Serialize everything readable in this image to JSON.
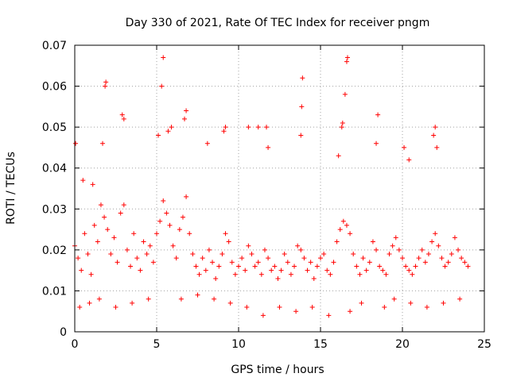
{
  "chart_data": {
    "type": "scatter",
    "title": "Day 330 of 2021, Rate Of TEC Index for receiver pngm",
    "xlabel": "GPS time / hours",
    "ylabel": "ROTI / TECUs",
    "xlim": [
      0,
      25
    ],
    "ylim": [
      0,
      0.07
    ],
    "x_ticks": [
      0,
      5,
      10,
      15,
      20,
      25
    ],
    "x_tick_labels": [
      "0",
      "5",
      "10",
      "15",
      "20",
      "25"
    ],
    "y_ticks": [
      0,
      0.01,
      0.02,
      0.03,
      0.04,
      0.05,
      0.06,
      0.07
    ],
    "y_tick_labels": [
      "0",
      "0.01",
      "0.02",
      "0.03",
      "0.04",
      "0.05",
      "0.06",
      "0.07"
    ],
    "grid": true,
    "marker": "plus",
    "color": "#ff0000",
    "series": [
      {
        "name": "ROTI",
        "x": [
          0.0,
          0.2,
          0.4,
          0.6,
          0.8,
          1.0,
          1.2,
          1.4,
          1.6,
          1.8,
          2.0,
          2.2,
          2.4,
          2.6,
          2.8,
          3.0,
          3.2,
          3.4,
          3.6,
          3.8,
          4.0,
          4.2,
          4.4,
          4.6,
          4.8,
          5.0,
          5.2,
          5.4,
          5.6,
          5.8,
          6.0,
          6.2,
          6.4,
          6.6,
          6.8,
          7.0,
          7.2,
          7.4,
          7.6,
          7.8,
          8.0,
          8.2,
          8.4,
          8.6,
          8.8,
          9.0,
          9.2,
          9.4,
          9.6,
          9.8,
          10.0,
          10.2,
          10.4,
          10.6,
          10.8,
          11.0,
          11.2,
          11.4,
          11.6,
          11.8,
          12.0,
          12.2,
          12.4,
          12.6,
          12.8,
          13.0,
          13.2,
          13.4,
          13.6,
          13.8,
          14.0,
          14.2,
          14.4,
          14.6,
          14.8,
          15.0,
          15.2,
          15.4,
          15.6,
          15.8,
          16.0,
          16.2,
          16.4,
          16.6,
          16.8,
          17.0,
          17.2,
          17.4,
          17.6,
          17.8,
          18.0,
          18.2,
          18.4,
          18.6,
          18.8,
          19.0,
          19.2,
          19.4,
          19.6,
          19.8,
          20.0,
          20.2,
          20.4,
          20.6,
          20.8,
          21.0,
          21.2,
          21.4,
          21.6,
          21.8,
          22.0,
          22.2,
          22.4,
          22.6,
          22.8,
          23.0,
          23.2,
          23.4,
          23.6,
          23.8,
          24.0,
          0.05,
          0.5,
          1.1,
          1.7,
          1.85,
          1.9,
          2.9,
          3.0,
          5.1,
          5.3,
          5.4,
          5.7,
          5.9,
          6.7,
          6.8,
          8.1,
          9.1,
          9.2,
          10.6,
          11.2,
          11.7,
          11.8,
          13.8,
          13.85,
          13.9,
          16.1,
          16.3,
          16.35,
          16.5,
          16.6,
          16.65,
          18.4,
          18.5,
          20.1,
          20.4,
          21.9,
          22.0,
          22.1,
          0.3,
          0.9,
          1.5,
          2.5,
          3.5,
          4.5,
          6.5,
          7.5,
          8.5,
          9.5,
          10.5,
          11.5,
          12.5,
          13.5,
          14.5,
          15.5,
          16.8,
          17.5,
          18.9,
          19.5,
          20.5,
          21.5,
          22.5,
          23.5
        ],
        "y": [
          0.021,
          0.018,
          0.015,
          0.024,
          0.019,
          0.014,
          0.026,
          0.022,
          0.031,
          0.028,
          0.025,
          0.019,
          0.023,
          0.017,
          0.029,
          0.031,
          0.02,
          0.016,
          0.024,
          0.018,
          0.015,
          0.022,
          0.019,
          0.021,
          0.017,
          0.024,
          0.027,
          0.032,
          0.029,
          0.026,
          0.021,
          0.018,
          0.025,
          0.028,
          0.033,
          0.024,
          0.019,
          0.016,
          0.014,
          0.018,
          0.015,
          0.02,
          0.017,
          0.013,
          0.016,
          0.019,
          0.024,
          0.022,
          0.017,
          0.014,
          0.016,
          0.018,
          0.015,
          0.021,
          0.019,
          0.016,
          0.017,
          0.014,
          0.02,
          0.018,
          0.015,
          0.016,
          0.013,
          0.015,
          0.019,
          0.017,
          0.014,
          0.016,
          0.021,
          0.02,
          0.018,
          0.015,
          0.017,
          0.013,
          0.016,
          0.018,
          0.019,
          0.015,
          0.014,
          0.017,
          0.022,
          0.025,
          0.027,
          0.026,
          0.024,
          0.019,
          0.016,
          0.014,
          0.018,
          0.015,
          0.017,
          0.022,
          0.02,
          0.016,
          0.015,
          0.014,
          0.019,
          0.021,
          0.023,
          0.02,
          0.018,
          0.016,
          0.015,
          0.014,
          0.016,
          0.018,
          0.02,
          0.017,
          0.019,
          0.022,
          0.024,
          0.021,
          0.018,
          0.016,
          0.017,
          0.019,
          0.023,
          0.02,
          0.018,
          0.017,
          0.016,
          0.046,
          0.037,
          0.036,
          0.046,
          0.06,
          0.061,
          0.053,
          0.052,
          0.048,
          0.06,
          0.067,
          0.049,
          0.05,
          0.052,
          0.054,
          0.046,
          0.049,
          0.05,
          0.05,
          0.05,
          0.05,
          0.045,
          0.048,
          0.055,
          0.062,
          0.043,
          0.05,
          0.051,
          0.058,
          0.066,
          0.067,
          0.046,
          0.053,
          0.045,
          0.042,
          0.048,
          0.05,
          0.045,
          0.006,
          0.007,
          0.008,
          0.006,
          0.007,
          0.008,
          0.008,
          0.009,
          0.008,
          0.007,
          0.006,
          0.004,
          0.006,
          0.005,
          0.006,
          0.004,
          0.005,
          0.007,
          0.006,
          0.008,
          0.007,
          0.006,
          0.007,
          0.008
        ]
      }
    ]
  }
}
